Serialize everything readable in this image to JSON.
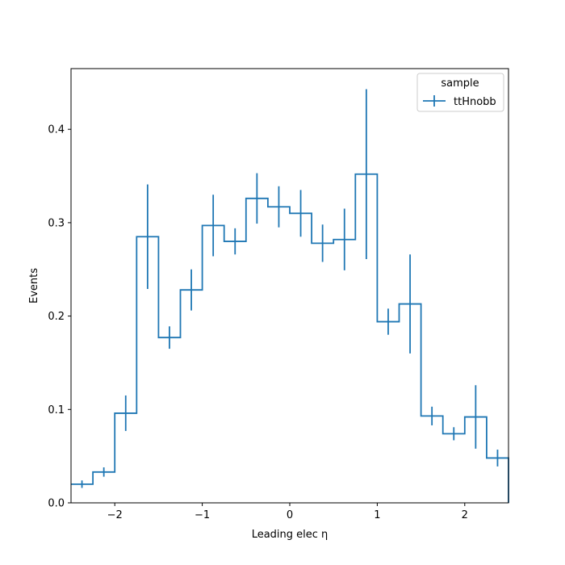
{
  "chart_data": {
    "type": "histogram-step",
    "xlabel": "Leading elec η",
    "ylabel": "Events",
    "xlim": [
      -2.5,
      2.5
    ],
    "ylim": [
      0,
      0.465
    ],
    "x_ticks": [
      -2,
      -1,
      0,
      1,
      2
    ],
    "x_tick_labels": [
      "−2",
      "−1",
      "0",
      "1",
      "2"
    ],
    "y_ticks": [
      0.0,
      0.1,
      0.2,
      0.3,
      0.4
    ],
    "y_tick_labels": [
      "0.0",
      "0.1",
      "0.2",
      "0.3",
      "0.4"
    ],
    "grid": false,
    "legend": {
      "title": "sample",
      "placement": "top-right",
      "entries": [
        "ttHnobb"
      ]
    },
    "series": [
      {
        "name": "ttHnobb",
        "color": "#1f77b4",
        "bin_edges": [
          -2.5,
          -2.25,
          -2.0,
          -1.75,
          -1.5,
          -1.25,
          -1.0,
          -0.75,
          -0.5,
          -0.25,
          0.0,
          0.25,
          0.5,
          0.75,
          1.0,
          1.25,
          1.5,
          1.75,
          2.0,
          2.25,
          2.5
        ],
        "values": [
          0.02,
          0.033,
          0.096,
          0.285,
          0.177,
          0.228,
          0.297,
          0.28,
          0.326,
          0.317,
          0.31,
          0.278,
          0.282,
          0.352,
          0.194,
          0.213,
          0.093,
          0.074,
          0.092,
          0.048
        ],
        "errors": [
          0.004,
          0.005,
          0.019,
          0.056,
          0.012,
          0.022,
          0.033,
          0.014,
          0.027,
          0.022,
          0.025,
          0.02,
          0.033,
          0.091,
          0.014,
          0.053,
          0.01,
          0.007,
          0.034,
          0.009
        ]
      }
    ]
  }
}
